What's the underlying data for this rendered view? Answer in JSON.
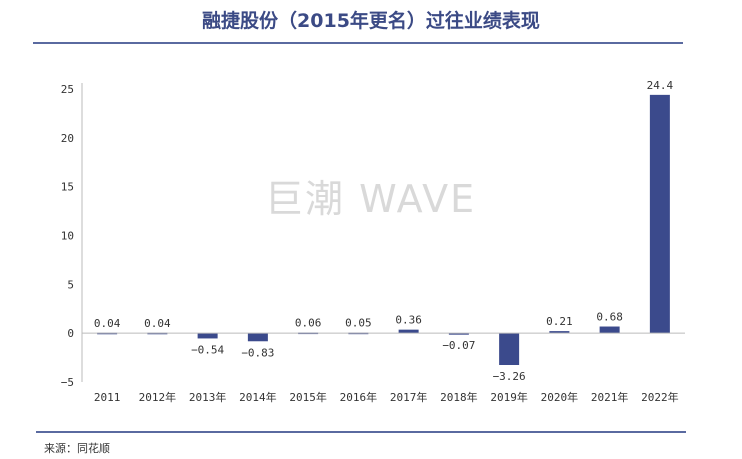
{
  "title": "融捷股份（2015年更名）过往业绩表现",
  "source": "来源：同花顺",
  "watermark": "巨潮 WAVE",
  "chart_data": {
    "type": "bar",
    "title": "融捷股份（2015年更名）过往业绩表现",
    "categories": [
      "2011",
      "2012年",
      "2013年",
      "2014年",
      "2015年",
      "2016年",
      "2017年",
      "2018年",
      "2019年",
      "2020年",
      "2021年",
      "2022年"
    ],
    "values": [
      0.04,
      0.04,
      -0.54,
      -0.83,
      0.06,
      0.05,
      0.36,
      -0.07,
      -3.26,
      0.21,
      0.68,
      24.4
    ],
    "data_labels": [
      "0.04",
      "0.04",
      "-0.54",
      "-0.83",
      "0.06",
      "0.05",
      "0.36",
      "-0.07",
      "-3.26",
      "0.21",
      "0.68",
      "24.4"
    ],
    "ylim": [
      -5,
      25
    ],
    "yticks": [
      -5,
      0,
      5,
      10,
      15,
      20,
      25
    ],
    "grid": false,
    "bar_color": "#3b4a8c",
    "xlabel": "",
    "ylabel": ""
  }
}
